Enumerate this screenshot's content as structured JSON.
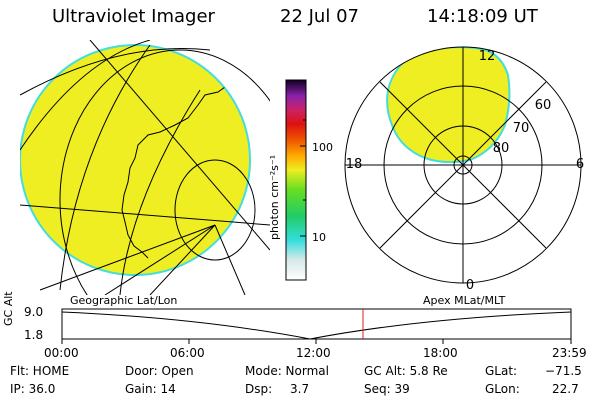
{
  "header": {
    "title": "Ultraviolet Imager",
    "date": "22 Jul 07",
    "time": "14:18:09 UT"
  },
  "colorbar": {
    "unit_label": "photon cm⁻²s⁻¹",
    "tick_100": "100",
    "tick_10": "10"
  },
  "polar_plot": {
    "mlt_labels": {
      "top": "12",
      "bottom": "0",
      "left": "18",
      "right": "6"
    },
    "lat_labels": [
      "60",
      "70",
      "80"
    ]
  },
  "panel_labels": {
    "left": "Geographic Lat/Lon",
    "right": "Apex MLat/MLT"
  },
  "alt_plot": {
    "ylabel": "GC Alt",
    "yticks": [
      "9.0",
      "1.8"
    ],
    "xticks": [
      "00:00",
      "06:00",
      "12:00",
      "18:00",
      "23:59"
    ]
  },
  "status": {
    "flt": "Flt: HOME",
    "ip": "IP: 36.0",
    "door": "Door: Open",
    "gain": "Gain: 14",
    "mode": "Mode: Normal",
    "dsp_label": "Dsp:",
    "dsp_value": "3.7",
    "gc_alt": "GC Alt: 5.8 Re",
    "seq": "Seq: 39",
    "glat_label": "GLat:",
    "glat_value": "−71.5",
    "glon_label": "GLon:",
    "glon_value": "22.7"
  },
  "colors": {
    "aurora_fill": "#eeee22",
    "aurora_edge": "#44dddd",
    "marker_line": "#dd2222"
  }
}
